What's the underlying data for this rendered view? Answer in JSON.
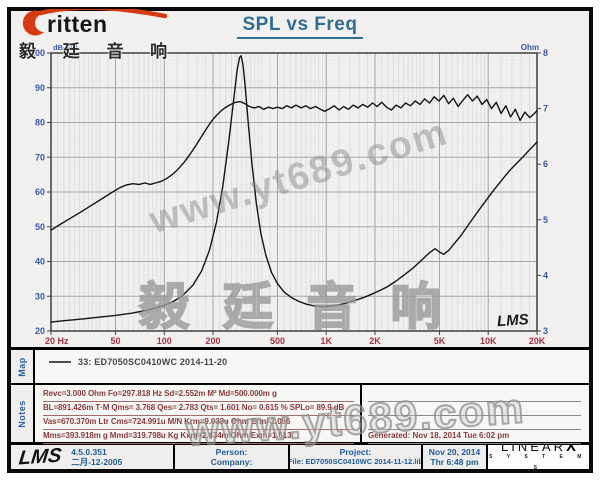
{
  "header": {
    "logo_text": "ritten",
    "logo_cn": "毅 廷 音 响",
    "title": "SPL vs Freq"
  },
  "chart_data": {
    "type": "line",
    "title": "SPL vs Freq",
    "grid": true,
    "corner_logo": "LMS",
    "x_axis": {
      "label": "Hz",
      "scale": "log",
      "min": 20,
      "max": 20000,
      "tick_values": [
        20,
        50,
        100,
        200,
        500,
        1000,
        2000,
        5000,
        10000,
        20000
      ],
      "tick_labels": [
        "20 Hz",
        "50",
        "100",
        "200",
        "500",
        "1K",
        "2K",
        "5K",
        "10K",
        "20K"
      ]
    },
    "y_left": {
      "label": "dB-SPL",
      "min": 20,
      "max": 100,
      "ticks": [
        100,
        90,
        80,
        70,
        60,
        50,
        40,
        30,
        20
      ]
    },
    "y_right": {
      "label": "Ohm",
      "min": 3,
      "max": 8,
      "ticks": [
        8,
        7,
        6,
        5,
        4,
        3
      ]
    },
    "style": {
      "x_label_color": "#a93040",
      "y_left_color": "#3757b5",
      "y_right_color": "#3757b5",
      "grid_minor_h": "#ededed",
      "grid_minor_v": "#dedede",
      "grid_major": "#a6a6a6",
      "border": "#4a4a4a",
      "curve": "#141414"
    },
    "series": [
      {
        "name": "SPL (33: ED7050SC0410WC)",
        "axis": "left",
        "points": [
          [
            20,
            49
          ],
          [
            23,
            50.8
          ],
          [
            26,
            52.3
          ],
          [
            30,
            54
          ],
          [
            34,
            55.6
          ],
          [
            38,
            57
          ],
          [
            43,
            58.6
          ],
          [
            48,
            60
          ],
          [
            53,
            61.2
          ],
          [
            58,
            62
          ],
          [
            64,
            62.4
          ],
          [
            70,
            62.2
          ],
          [
            76,
            62.6
          ],
          [
            82,
            62.2
          ],
          [
            88,
            62.6
          ],
          [
            95,
            63
          ],
          [
            103,
            63.8
          ],
          [
            112,
            65
          ],
          [
            122,
            66.6
          ],
          [
            133,
            68.6
          ],
          [
            145,
            71
          ],
          [
            158,
            73.6
          ],
          [
            170,
            76
          ],
          [
            183,
            78.4
          ],
          [
            196,
            80.4
          ],
          [
            210,
            82
          ],
          [
            225,
            83.4
          ],
          [
            240,
            84.4
          ],
          [
            258,
            85.2
          ],
          [
            275,
            85.8
          ],
          [
            295,
            86
          ],
          [
            315,
            85.4
          ],
          [
            335,
            84.6
          ],
          [
            360,
            84.2
          ],
          [
            385,
            84.6
          ],
          [
            410,
            83.8
          ],
          [
            440,
            84.4
          ],
          [
            470,
            84
          ],
          [
            500,
            84.4
          ],
          [
            535,
            84
          ],
          [
            570,
            84.8
          ],
          [
            610,
            84.2
          ],
          [
            650,
            85
          ],
          [
            700,
            84.2
          ],
          [
            750,
            84.8
          ],
          [
            800,
            84
          ],
          [
            860,
            84.6
          ],
          [
            920,
            83.8
          ],
          [
            980,
            83.2
          ],
          [
            1050,
            84
          ],
          [
            1120,
            84.8
          ],
          [
            1200,
            83.6
          ],
          [
            1280,
            84.6
          ],
          [
            1370,
            83.8
          ],
          [
            1470,
            85
          ],
          [
            1570,
            84.2
          ],
          [
            1680,
            85.2
          ],
          [
            1800,
            84.4
          ],
          [
            1930,
            85.6
          ],
          [
            2060,
            84.6
          ],
          [
            2200,
            85.8
          ],
          [
            2360,
            84.4
          ],
          [
            2520,
            83.6
          ],
          [
            2700,
            85
          ],
          [
            2890,
            84.2
          ],
          [
            3090,
            85.6
          ],
          [
            3310,
            84.8
          ],
          [
            3540,
            86.2
          ],
          [
            3790,
            85.2
          ],
          [
            4050,
            86.8
          ],
          [
            4340,
            85.6
          ],
          [
            4640,
            87.4
          ],
          [
            4970,
            86.2
          ],
          [
            5320,
            87.8
          ],
          [
            5690,
            85.4
          ],
          [
            6090,
            87
          ],
          [
            6520,
            84.6
          ],
          [
            6980,
            86.4
          ],
          [
            7470,
            88
          ],
          [
            7990,
            86.2
          ],
          [
            8550,
            87.6
          ],
          [
            9150,
            85.2
          ],
          [
            9790,
            86.6
          ],
          [
            10480,
            84
          ],
          [
            11210,
            85.8
          ],
          [
            12000,
            82.6
          ],
          [
            12840,
            84.8
          ],
          [
            13740,
            81.6
          ],
          [
            14700,
            83.8
          ],
          [
            15730,
            80.6
          ],
          [
            16840,
            83
          ],
          [
            18020,
            81.4
          ],
          [
            19280,
            82.6
          ],
          [
            20000,
            83.4
          ]
        ]
      },
      {
        "name": "Impedance",
        "axis": "right",
        "points": [
          [
            20,
            3.16
          ],
          [
            25,
            3.19
          ],
          [
            32,
            3.22
          ],
          [
            40,
            3.25
          ],
          [
            50,
            3.28
          ],
          [
            63,
            3.32
          ],
          [
            80,
            3.38
          ],
          [
            100,
            3.46
          ],
          [
            115,
            3.54
          ],
          [
            130,
            3.64
          ],
          [
            150,
            3.82
          ],
          [
            170,
            4.08
          ],
          [
            190,
            4.45
          ],
          [
            210,
            4.95
          ],
          [
            230,
            5.6
          ],
          [
            250,
            6.4
          ],
          [
            268,
            7.15
          ],
          [
            282,
            7.7
          ],
          [
            292,
            7.92
          ],
          [
            298,
            7.95
          ],
          [
            306,
            7.8
          ],
          [
            316,
            7.4
          ],
          [
            330,
            6.75
          ],
          [
            348,
            6.0
          ],
          [
            370,
            5.3
          ],
          [
            395,
            4.75
          ],
          [
            425,
            4.35
          ],
          [
            460,
            4.05
          ],
          [
            500,
            3.85
          ],
          [
            550,
            3.7
          ],
          [
            610,
            3.6
          ],
          [
            680,
            3.53
          ],
          [
            760,
            3.48
          ],
          [
            850,
            3.45
          ],
          [
            950,
            3.44
          ],
          [
            1060,
            3.45
          ],
          [
            1190,
            3.47
          ],
          [
            1330,
            3.5
          ],
          [
            1500,
            3.55
          ],
          [
            1700,
            3.6
          ],
          [
            1900,
            3.66
          ],
          [
            2150,
            3.73
          ],
          [
            2400,
            3.8
          ],
          [
            2700,
            3.9
          ],
          [
            3000,
            4.0
          ],
          [
            3400,
            4.12
          ],
          [
            3800,
            4.25
          ],
          [
            4300,
            4.4
          ],
          [
            4700,
            4.48
          ],
          [
            5000,
            4.42
          ],
          [
            5300,
            4.38
          ],
          [
            5700,
            4.45
          ],
          [
            6200,
            4.58
          ],
          [
            6800,
            4.72
          ],
          [
            7500,
            4.9
          ],
          [
            8300,
            5.08
          ],
          [
            9200,
            5.26
          ],
          [
            10000,
            5.4
          ],
          [
            11000,
            5.56
          ],
          [
            12000,
            5.7
          ],
          [
            13500,
            5.88
          ],
          [
            15000,
            6.02
          ],
          [
            16500,
            6.14
          ],
          [
            18000,
            6.26
          ],
          [
            19000,
            6.33
          ],
          [
            20000,
            6.4
          ]
        ]
      }
    ]
  },
  "map": {
    "label": "Map",
    "legend": "33: ED7050SC0410WC   2014-11-20"
  },
  "notes": {
    "label": "Notes",
    "lines": [
      "Revc=3.000 Ohm  Fo=297.818 Hz  Sd=2.552m M²  Md=500.000m g",
      "BL=891.426m T·M  Qms= 3.768  Qes= 2.783  Qts= 1.601  No= 0.615 %  SPLo= 89.9 dB",
      "Vas=670.370m Ltr  Cms=724.991u M/N  Krm=9.033u Ohm  Erm=1.086",
      "Mms=393.918m g  Mmd=319.798u Kg  Kxm=2.434m Ohm  Exm=1.613"
    ],
    "right_lines": [
      "",
      "",
      "",
      "Generated: Nov 18, 2014   Tue 6:02 pm"
    ]
  },
  "watermarks": {
    "chart": "www.yt689.com",
    "chinese": "毅 廷 音 响",
    "bottom": "www.yt689.com"
  },
  "footer": {
    "lms_logo": "LMS",
    "version": "4.5.0.351",
    "date_cn": "二月-12-2005",
    "person_label": "Person:",
    "company_label": "Company:",
    "project_label": "Project:",
    "file_line": "File: ED7050SC0410WC    2014-11-12.lib",
    "date_line1": "Nov 20, 2014",
    "date_line2": "Thr  6:48 pm",
    "brand_main": "LINEAR",
    "brand_x": "X",
    "brand_sub": "S Y S T E M S"
  }
}
